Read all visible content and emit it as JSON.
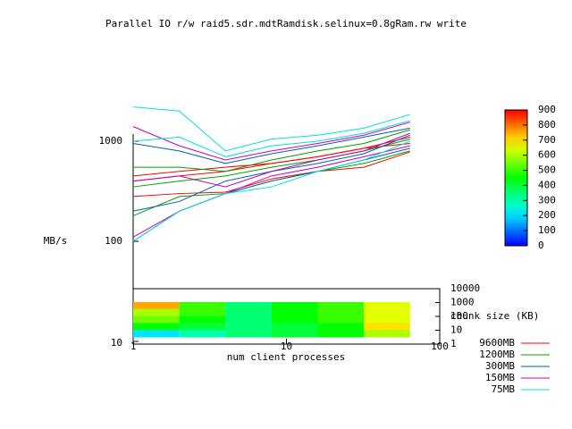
{
  "chart_data": {
    "type": "line",
    "title": "Parallel IO r/w raid5.sdr.mdtRamdisk.selinux=0.8gRam.rw write",
    "y_label": "MB/s",
    "x_label": "num client processes",
    "x_log": true,
    "y_log": true,
    "x": [
      1,
      2,
      4,
      8,
      16,
      32,
      64
    ],
    "xlim": [
      1,
      100
    ],
    "xticks": [
      1,
      10,
      100
    ],
    "ylim": [
      10,
      3000
    ],
    "yticks": [
      10,
      100,
      1000
    ],
    "series": [
      {
        "name": "9600MB",
        "color": "#ff0000",
        "lines": [
          [
            400,
            450,
            500,
            600,
            700,
            850,
            1100
          ],
          [
            280,
            300,
            310,
            420,
            500,
            550,
            780
          ],
          [
            450,
            500,
            550,
            600,
            700,
            850,
            950
          ]
        ]
      },
      {
        "name": "1200MB",
        "color": "#00a000",
        "lines": [
          [
            550,
            550,
            500,
            650,
            800,
            950,
            1300
          ],
          [
            180,
            280,
            300,
            400,
            500,
            600,
            800
          ],
          [
            350,
            400,
            450,
            550,
            650,
            800,
            1050
          ]
        ]
      },
      {
        "name": "300MB",
        "color": "#0060ad",
        "lines": [
          [
            950,
            800,
            600,
            750,
            900,
            1100,
            1350
          ],
          [
            200,
            250,
            400,
            500,
            600,
            750,
            1150
          ],
          [
            100,
            200,
            300,
            400,
            500,
            650,
            850
          ]
        ]
      },
      {
        "name": "150MB",
        "color": "#c000c0",
        "lines": [
          [
            1400,
            900,
            650,
            800,
            950,
            1150,
            1550
          ],
          [
            400,
            450,
            350,
            500,
            650,
            800,
            1200
          ],
          [
            110,
            200,
            300,
            450,
            550,
            700,
            900
          ]
        ]
      },
      {
        "name": "75MB",
        "color": "#00e0e0",
        "lines": [
          [
            2200,
            2000,
            800,
            1050,
            1150,
            1350,
            1850
          ],
          [
            100,
            200,
            300,
            350,
            500,
            650,
            1000
          ],
          [
            1000,
            1100,
            700,
            900,
            1000,
            1200,
            1600
          ]
        ]
      }
    ],
    "chunk_label": "chunk size (KB)",
    "chunk_lim": [
      1,
      10000
    ],
    "chunk_ticks": [
      10000,
      1000,
      100,
      10,
      1
    ],
    "heatmap": {
      "x_edges": [
        1,
        2,
        4,
        8,
        16,
        32,
        64
      ],
      "z": [
        [
          750,
          500,
          350,
          450,
          500,
          650
        ],
        [
          600,
          500,
          350,
          450,
          500,
          650
        ],
        [
          550,
          450,
          350,
          450,
          500,
          650
        ],
        [
          450,
          400,
          350,
          400,
          450,
          700
        ],
        [
          200,
          300,
          350,
          400,
          450,
          600
        ]
      ]
    },
    "zlim": [
      0,
      900
    ],
    "zticks": [
      900,
      800,
      700,
      600,
      500,
      400,
      300,
      200,
      100,
      0
    ]
  }
}
